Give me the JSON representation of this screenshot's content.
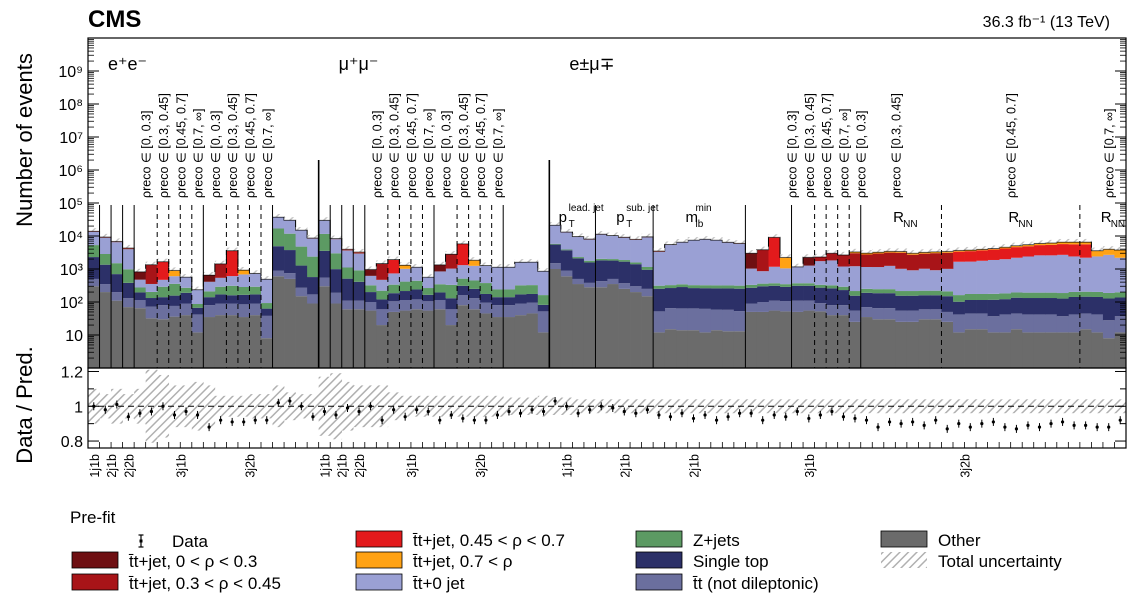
{
  "chart_data": {
    "type": "bar",
    "experiment": "CMS",
    "luminosity_label": "36.3 fb⁻¹ (13 TeV)",
    "ylabel": "Number of events",
    "ratio_ylabel": "Data / Pred.",
    "y_scale": "log",
    "ylim": [
      1,
      10000000000.0
    ],
    "y_tick_labels": [
      "10",
      "10²",
      "10³",
      "10⁴",
      "10⁵",
      "10⁶",
      "10⁷",
      "10⁸",
      "10⁹"
    ],
    "ratio_ylim": [
      0.76,
      1.22
    ],
    "ratio_tick_labels": [
      "0.8",
      "1",
      "1.2"
    ],
    "num_bins": 90,
    "channels": [
      {
        "name": "e⁺e⁻",
        "bin_start": 0,
        "bin_end": 20
      },
      {
        "name": "μ⁺μ⁻",
        "bin_start": 20,
        "bin_end": 40
      },
      {
        "name": "e±μ∓",
        "bin_start": 40,
        "bin_end": 90
      }
    ],
    "rho_labels": [
      {
        "bin": 5,
        "text": "ρreco ∈ [0, 0.3]"
      },
      {
        "bin": 6.5,
        "text": "ρreco ∈ [0.3, 0.45]"
      },
      {
        "bin": 8,
        "text": "ρreco ∈ [0.45, 0.7]"
      },
      {
        "bin": 9.5,
        "text": "ρreco ∈ [0.7, ∞]"
      },
      {
        "bin": 11,
        "text": "ρreco ∈ [0, 0.3]"
      },
      {
        "bin": 12.5,
        "text": "ρreco ∈ [0.3, 0.45]"
      },
      {
        "bin": 14,
        "text": "ρreco ∈ [0.45, 0.7]"
      },
      {
        "bin": 15.5,
        "text": "ρreco ∈ [0.7, ∞]"
      },
      {
        "bin": 25,
        "text": "ρreco ∈ [0, 0.3]"
      },
      {
        "bin": 26.5,
        "text": "ρreco ∈ [0.3, 0.45]"
      },
      {
        "bin": 28,
        "text": "ρreco ∈ [0.45, 0.7]"
      },
      {
        "bin": 29.5,
        "text": "ρreco ∈ [0.7, ∞]"
      },
      {
        "bin": 31,
        "text": "ρreco ∈ [0, 0.3]"
      },
      {
        "bin": 32.5,
        "text": "ρreco ∈ [0.3, 0.45]"
      },
      {
        "bin": 34,
        "text": "ρreco ∈ [0.45, 0.7]"
      },
      {
        "bin": 35.5,
        "text": "ρreco ∈ [0.7, ∞]"
      },
      {
        "bin": 61,
        "text": "ρreco ∈ [0, 0.3]"
      },
      {
        "bin": 62.5,
        "text": "ρreco ∈ [0.3, 0.45]"
      },
      {
        "bin": 64,
        "text": "ρreco ∈ [0.45, 0.7]"
      },
      {
        "bin": 65.5,
        "text": "ρreco ∈ [0.7, ∞]"
      },
      {
        "bin": 67,
        "text": "ρreco ∈ [0, 0.3]"
      },
      {
        "bin": 70,
        "text": "ρreco ∈ [0.3, 0.45]"
      },
      {
        "bin": 80,
        "text": "ρreco ∈ [0.45, 0.7]"
      },
      {
        "bin": 88.5,
        "text": "ρreco ∈ [0.7, ∞]"
      }
    ],
    "variable_labels": [
      {
        "bin": 41.5,
        "main": "p",
        "sub": "T",
        "sup": "lead. jet"
      },
      {
        "bin": 46.5,
        "main": "p",
        "sub": "T",
        "sup": "sub. jet"
      },
      {
        "bin": 52.5,
        "main": "m",
        "sub": "lb",
        "sup": "min"
      },
      {
        "bin": 70.5,
        "main": "R",
        "sub": "NN",
        "sup": ""
      },
      {
        "bin": 80.5,
        "main": "R",
        "sub": "NN",
        "sup": ""
      },
      {
        "bin": 88.5,
        "main": "R",
        "sub": "NN",
        "sup": ""
      }
    ],
    "category_labels": [
      {
        "bin": 0.5,
        "text": "1j1b"
      },
      {
        "bin": 2,
        "text": "2j1b"
      },
      {
        "bin": 3.5,
        "text": "2j2b"
      },
      {
        "bin": 8,
        "text": "3j1b"
      },
      {
        "bin": 14,
        "text": "3j2b"
      },
      {
        "bin": 20.5,
        "text": "1j1b"
      },
      {
        "bin": 22,
        "text": "2j1b"
      },
      {
        "bin": 23.5,
        "text": "2j2b"
      },
      {
        "bin": 28,
        "text": "3j1b"
      },
      {
        "bin": 34,
        "text": "3j2b"
      },
      {
        "bin": 41.5,
        "text": "1j1b"
      },
      {
        "bin": 46.5,
        "text": "2j1b"
      },
      {
        "bin": 52.5,
        "text": "2j1b"
      },
      {
        "bin": 62.5,
        "text": "3j1b"
      },
      {
        "bin": 76,
        "text": "3j2b"
      }
    ],
    "solid_separators": [
      20,
      40
    ],
    "long_separators": [
      1,
      2,
      3,
      4,
      10,
      16,
      21,
      22,
      23,
      24,
      30,
      36,
      44,
      49,
      57,
      61,
      67
    ],
    "dashed_separators": [
      6,
      7,
      8,
      9,
      12,
      13,
      14,
      15,
      26,
      27,
      28,
      29,
      32,
      33,
      34,
      35,
      63,
      64,
      65,
      66,
      74,
      86
    ],
    "series": [
      {
        "name": "Other",
        "color": "#6b6b6b",
        "values": [
          300,
          200,
          110,
          70,
          65,
          32,
          30,
          36,
          40,
          12,
          35,
          40,
          40,
          35,
          40,
          8,
          600,
          500,
          150,
          90,
          300,
          90,
          60,
          60,
          55,
          20,
          50,
          55,
          60,
          55,
          60,
          20,
          80,
          60,
          45,
          35,
          35,
          40,
          45,
          12,
          1000,
          600,
          350,
          280,
          280,
          350,
          250,
          200,
          150,
          12,
          15,
          14,
          14,
          12,
          14,
          13,
          13,
          50,
          50,
          55,
          52,
          50,
          55,
          52,
          40,
          40,
          25,
          35,
          30,
          30,
          25,
          25,
          30,
          30,
          25,
          12,
          15,
          15,
          12,
          12,
          15,
          12,
          12,
          12,
          12,
          12,
          15,
          12,
          8,
          12
        ]
      },
      {
        "name": "t̄t (not dileptonic)",
        "color": "#6b6f9e",
        "values": [
          200,
          150,
          90,
          60,
          50,
          40,
          50,
          40,
          50,
          30,
          45,
          50,
          50,
          50,
          50,
          30,
          300,
          250,
          120,
          80,
          250,
          100,
          50,
          50,
          45,
          40,
          55,
          60,
          60,
          50,
          55,
          40,
          80,
          70,
          50,
          45,
          45,
          50,
          50,
          40,
          500,
          300,
          150,
          100,
          150,
          150,
          120,
          100,
          100,
          40,
          50,
          50,
          50,
          50,
          45,
          45,
          40,
          40,
          50,
          55,
          55,
          60,
          55,
          40,
          40,
          40,
          30,
          35,
          35,
          35,
          30,
          30,
          30,
          30,
          25,
          30,
          30,
          30,
          25,
          30,
          30,
          30,
          30,
          30,
          25,
          30,
          30,
          30,
          20,
          25
        ]
      },
      {
        "name": "Single top",
        "color": "#2c3068",
        "values": [
          1800,
          1000,
          500,
          250,
          80,
          60,
          60,
          80,
          100,
          25,
          60,
          80,
          70,
          80,
          80,
          25,
          4000,
          3000,
          1000,
          400,
          3000,
          800,
          400,
          300,
          100,
          60,
          80,
          100,
          120,
          60,
          80,
          70,
          150,
          120,
          80,
          60,
          60,
          80,
          80,
          30,
          4000,
          2800,
          1600,
          1200,
          1400,
          1300,
          1300,
          1100,
          700,
          200,
          200,
          220,
          200,
          200,
          200,
          200,
          200,
          180,
          200,
          200,
          180,
          200,
          200,
          180,
          180,
          150,
          100,
          120,
          120,
          120,
          100,
          100,
          100,
          100,
          100,
          60,
          70,
          70,
          80,
          80,
          90,
          90,
          90,
          90,
          90,
          100,
          100,
          100,
          100,
          100
        ]
      },
      {
        "name": "Z+jets",
        "color": "#5c9a63",
        "values": [
          3000,
          1500,
          800,
          600,
          80,
          70,
          150,
          200,
          80,
          20,
          70,
          120,
          150,
          120,
          120,
          30,
          12000,
          8000,
          3500,
          1800,
          8000,
          2000,
          600,
          500,
          120,
          100,
          150,
          200,
          200,
          100,
          150,
          200,
          200,
          200,
          200,
          100,
          100,
          150,
          150,
          80,
          300,
          200,
          200,
          200,
          200,
          200,
          200,
          180,
          200,
          60,
          60,
          60,
          60,
          60,
          60,
          60,
          60,
          60,
          60,
          60,
          60,
          60,
          60,
          60,
          60,
          60,
          60,
          60,
          60,
          60,
          60,
          60,
          60,
          60,
          60,
          60,
          60,
          60,
          60,
          60,
          60,
          60,
          60,
          60,
          60,
          60,
          60,
          60,
          60,
          60
        ]
      },
      {
        "name": "t̄t+0 jet",
        "color": "#9aa0d4",
        "values": [
          8000,
          6000,
          5000,
          3000,
          200,
          150,
          180,
          250,
          300,
          150,
          200,
          250,
          300,
          400,
          450,
          400,
          20000,
          18000,
          10000,
          6000,
          18000,
          5000,
          2500,
          2000,
          300,
          250,
          400,
          600,
          700,
          300,
          500,
          700,
          800,
          800,
          900,
          900,
          900,
          1300,
          1300,
          700,
          15000,
          9000,
          7000,
          6000,
          9000,
          8000,
          7000,
          6000,
          8000,
          3000,
          5000,
          6000,
          7000,
          7500,
          7000,
          6000,
          5500,
          700,
          500,
          800,
          700,
          800,
          900,
          1400,
          1500,
          900,
          1000,
          900,
          900,
          1000,
          800,
          700,
          800,
          700,
          800,
          1500,
          1500,
          1600,
          1700,
          1800,
          2000,
          2200,
          2400,
          2400,
          2500,
          2200,
          2000,
          2200,
          2500,
          2000
        ]
      },
      {
        "name": "t̄t+jet, 0 < ρ < 0.3",
        "color": "#6e0f12",
        "values": [
          200,
          150,
          100,
          100,
          350,
          0,
          0,
          0,
          0,
          0,
          250,
          0,
          0,
          0,
          0,
          0,
          200,
          150,
          100,
          100,
          150,
          100,
          100,
          100,
          350,
          0,
          0,
          0,
          0,
          0,
          500,
          0,
          0,
          0,
          0,
          0,
          0,
          0,
          0,
          0,
          150,
          100,
          100,
          100,
          120,
          100,
          100,
          100,
          100,
          60,
          60,
          60,
          60,
          60,
          60,
          60,
          60,
          2000,
          0,
          0,
          0,
          0,
          1000,
          0,
          0,
          0,
          0,
          0,
          0,
          0,
          0,
          0,
          0,
          0,
          0,
          0,
          0,
          0,
          0,
          0,
          0,
          0,
          0,
          0,
          0,
          0,
          0,
          0,
          0,
          0
        ]
      },
      {
        "name": "t̄t+jet, 0.3 < ρ < 0.45",
        "color": "#a81418",
        "values": [
          200,
          150,
          100,
          100,
          0,
          1000,
          0,
          0,
          0,
          0,
          0,
          900,
          0,
          0,
          0,
          0,
          200,
          150,
          100,
          100,
          150,
          100,
          100,
          100,
          0,
          1000,
          0,
          0,
          0,
          0,
          0,
          1800,
          0,
          0,
          0,
          0,
          0,
          0,
          0,
          0,
          150,
          100,
          100,
          100,
          120,
          100,
          100,
          100,
          100,
          60,
          60,
          60,
          60,
          60,
          60,
          60,
          60,
          0,
          3000,
          0,
          0,
          0,
          0,
          600,
          1200,
          1500,
          1800,
          1600,
          1800,
          1900,
          2100,
          1800,
          1900,
          2100,
          2100,
          0,
          0,
          0,
          0,
          0,
          0,
          0,
          0,
          0,
          0,
          0,
          0,
          0,
          0,
          0
        ]
      },
      {
        "name": "t̄t+jet, 0.45 < ρ < 0.7",
        "color": "#e31a1c",
        "values": [
          200,
          150,
          100,
          100,
          0,
          0,
          1200,
          0,
          0,
          0,
          0,
          0,
          3000,
          0,
          0,
          0,
          200,
          150,
          100,
          100,
          150,
          100,
          100,
          100,
          0,
          0,
          1200,
          0,
          0,
          0,
          0,
          0,
          4500,
          0,
          0,
          0,
          0,
          0,
          0,
          0,
          150,
          100,
          100,
          100,
          120,
          100,
          100,
          100,
          100,
          60,
          60,
          60,
          60,
          60,
          60,
          60,
          60,
          0,
          0,
          8000,
          0,
          0,
          0,
          0,
          0,
          0,
          0,
          0,
          0,
          0,
          0,
          0,
          0,
          0,
          0,
          1700,
          1800,
          1900,
          2000,
          2200,
          2400,
          2500,
          2700,
          2800,
          3000,
          3200,
          3400,
          0,
          0,
          0
        ]
      },
      {
        "name": "t̄t+jet, 0.7 < ρ",
        "color": "#ffa214",
        "values": [
          150,
          100,
          80,
          80,
          0,
          0,
          0,
          300,
          0,
          0,
          0,
          0,
          0,
          250,
          0,
          0,
          150,
          100,
          80,
          80,
          100,
          80,
          80,
          80,
          0,
          0,
          0,
          300,
          0,
          0,
          0,
          0,
          0,
          600,
          0,
          0,
          0,
          0,
          0,
          0,
          120,
          90,
          80,
          80,
          90,
          80,
          80,
          80,
          80,
          40,
          40,
          40,
          40,
          40,
          40,
          40,
          40,
          0,
          0,
          0,
          1200,
          0,
          0,
          0,
          0,
          0,
          300,
          300,
          300,
          300,
          300,
          300,
          300,
          300,
          300,
          300,
          300,
          300,
          300,
          400,
          500,
          600,
          700,
          800,
          900,
          1000,
          1000,
          1200,
          1300,
          1600
        ]
      }
    ],
    "data_ratio": [
      1.0,
      0.98,
      1.01,
      0.94,
      0.96,
      0.97,
      1.0,
      0.95,
      0.97,
      0.95,
      0.88,
      0.92,
      0.91,
      0.91,
      0.92,
      0.92,
      1.02,
      1.03,
      1.0,
      0.94,
      0.97,
      0.95,
      0.99,
      0.97,
      1.0,
      0.92,
      0.98,
      0.94,
      0.98,
      0.97,
      0.92,
      0.95,
      0.93,
      0.92,
      0.92,
      0.95,
      0.97,
      0.96,
      0.98,
      0.97,
      1.03,
      1.0,
      0.96,
      0.98,
      1.0,
      0.99,
      0.97,
      0.96,
      0.98,
      0.95,
      0.94,
      0.96,
      0.93,
      0.95,
      0.92,
      0.94,
      0.96,
      0.96,
      0.92,
      0.95,
      0.94,
      0.97,
      0.93,
      0.95,
      0.97,
      0.94,
      0.93,
      0.92,
      0.88,
      0.91,
      0.9,
      0.91,
      0.89,
      0.92,
      0.87,
      0.9,
      0.88,
      0.9,
      0.91,
      0.88,
      0.87,
      0.89,
      0.88,
      0.9,
      0.91,
      0.89,
      0.89,
      0.88,
      0.88,
      0.92
    ],
    "uncertainty": [
      0.1,
      0.07,
      0.1,
      0.07,
      0.1,
      0.21,
      0.18,
      0.12,
      0.12,
      0.14,
      0.12,
      0.06,
      0.06,
      0.06,
      0.07,
      0.07,
      0.12,
      0.08,
      0.07,
      0.07,
      0.17,
      0.19,
      0.14,
      0.12,
      0.12,
      0.12,
      0.08,
      0.06,
      0.06,
      0.06,
      0.06,
      0.06,
      0.06,
      0.06,
      0.06,
      0.06,
      0.05,
      0.05,
      0.05,
      0.06,
      0.05,
      0.05,
      0.04,
      0.04,
      0.04,
      0.04,
      0.04,
      0.04,
      0.04,
      0.04,
      0.04,
      0.04,
      0.04,
      0.04,
      0.04,
      0.04,
      0.04,
      0.04,
      0.04,
      0.04,
      0.04,
      0.04,
      0.04,
      0.04,
      0.04,
      0.04,
      0.04,
      0.04,
      0.04,
      0.04,
      0.04,
      0.04,
      0.04,
      0.04,
      0.04,
      0.04,
      0.04,
      0.04,
      0.04,
      0.04,
      0.04,
      0.04,
      0.04,
      0.04,
      0.04,
      0.04,
      0.04,
      0.04,
      0.04,
      0.04
    ],
    "legend": {
      "placement": "bottom",
      "title": "Pre-fit",
      "data_label": "Data",
      "uncertainty_label": "Total uncertainty"
    }
  }
}
